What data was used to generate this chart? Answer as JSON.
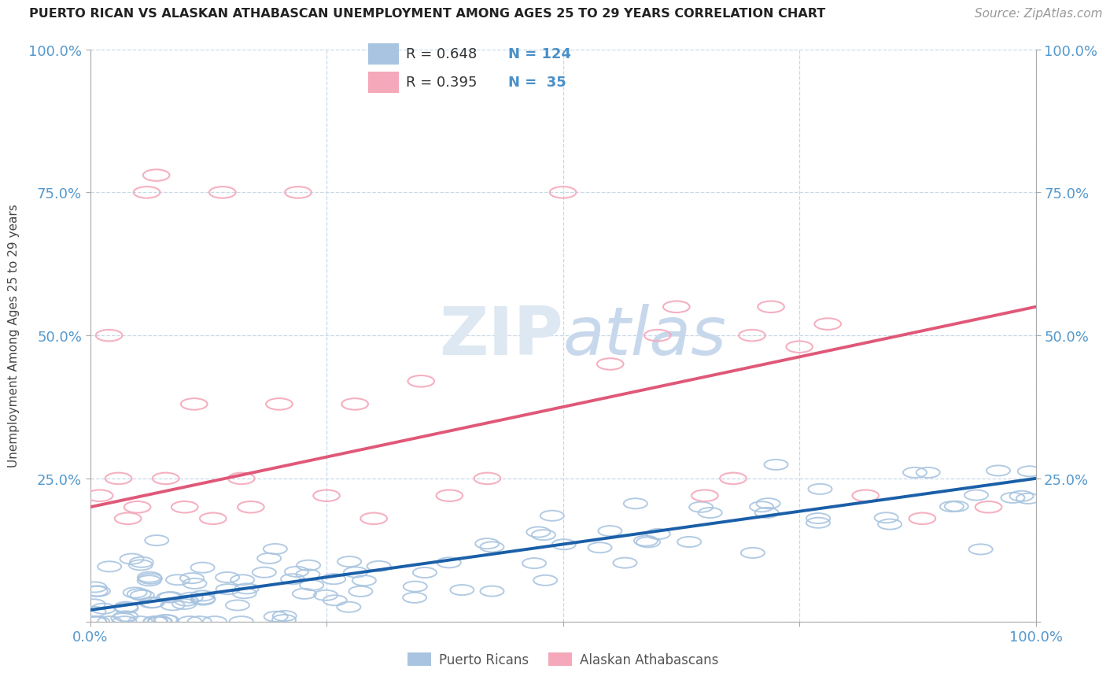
{
  "title": "PUERTO RICAN VS ALASKAN ATHABASCAN UNEMPLOYMENT AMONG AGES 25 TO 29 YEARS CORRELATION CHART",
  "source": "Source: ZipAtlas.com",
  "ylabel": "Unemployment Among Ages 25 to 29 years",
  "xlim": [
    0,
    1
  ],
  "ylim": [
    0,
    1
  ],
  "blue_R": 0.648,
  "blue_N": 124,
  "pink_R": 0.395,
  "pink_N": 35,
  "blue_color": "#a8c4e0",
  "pink_color": "#f4a8ba",
  "blue_line_color": "#1a5fa8",
  "pink_line_color": "#e05878",
  "blue_text_color": "#4a90c8",
  "background_color": "#ffffff",
  "grid_color": "#c8d8e8",
  "tick_color": "#5599cc",
  "watermark_color": "#dce8f4",
  "blue_intercept": 0.02,
  "blue_slope": 0.23,
  "pink_intercept": 0.2,
  "pink_slope": 0.35
}
